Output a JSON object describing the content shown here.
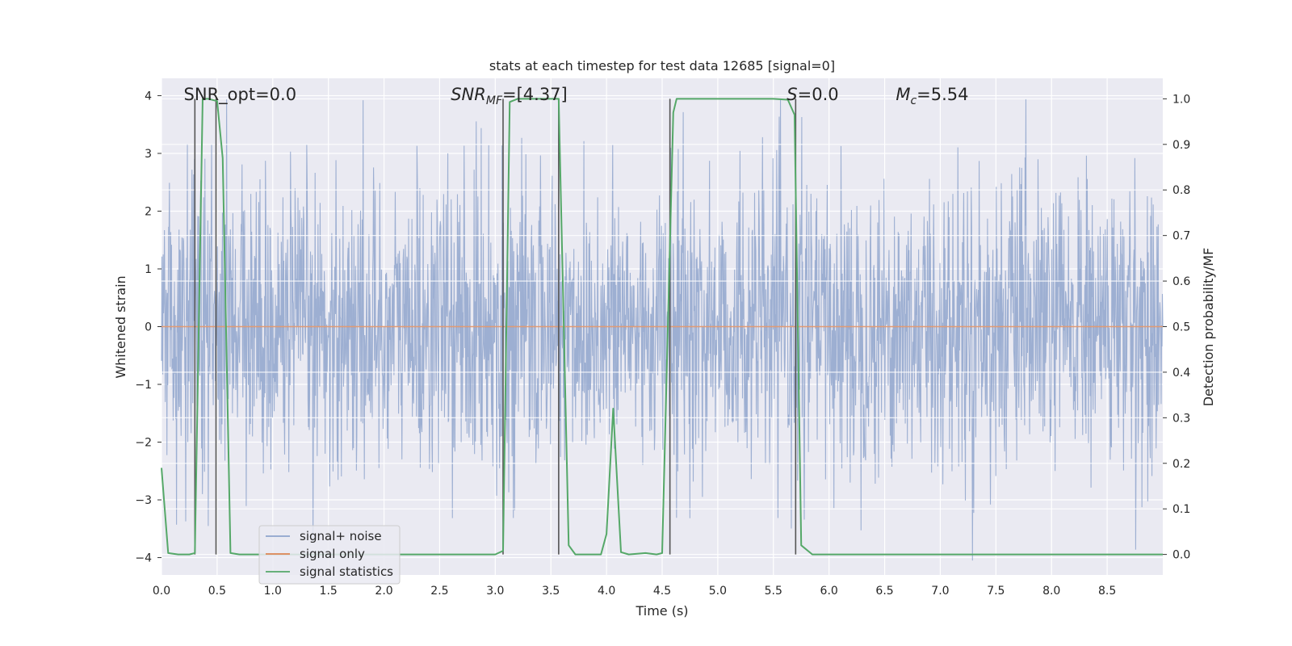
{
  "chart_data": {
    "type": "line",
    "title": "stats at each timestep for test data 12685 [signal=0]",
    "xlabel": "Time (s)",
    "ylabel": "Whitened strain",
    "y2label": "Detection probability/MF",
    "xlim": [
      0,
      9
    ],
    "ylim": [
      -4.3,
      4.3
    ],
    "y2lim": [
      -0.045,
      1.045
    ],
    "x_ticks": [
      0.0,
      0.5,
      1.0,
      1.5,
      2.0,
      2.5,
      3.0,
      3.5,
      4.0,
      4.5,
      5.0,
      5.5,
      6.0,
      6.5,
      7.0,
      7.5,
      8.0,
      8.5
    ],
    "x_tick_labels": [
      "0.0",
      "0.5",
      "1.0",
      "1.5",
      "2.0",
      "2.5",
      "3.0",
      "3.5",
      "4.0",
      "4.5",
      "5.0",
      "5.5",
      "6.0",
      "6.5",
      "7.0",
      "7.5",
      "8.0",
      "8.5"
    ],
    "y_ticks": [
      4,
      3,
      2,
      1,
      0,
      -1,
      -2,
      -3,
      -4
    ],
    "y_tick_labels": [
      "4",
      "3",
      "2",
      "1",
      "0",
      "−1",
      "−2",
      "−3",
      "−4"
    ],
    "y2_ticks": [
      1.0,
      0.9,
      0.8,
      0.7,
      0.6,
      0.5,
      0.4,
      0.3,
      0.2,
      0.1,
      0.0
    ],
    "y2_tick_labels": [
      "1.0",
      "0.9",
      "0.8",
      "0.7",
      "0.6",
      "0.5",
      "0.4",
      "0.3",
      "0.2",
      "0.1",
      "0.0"
    ],
    "grid": true,
    "legend_position": "lower-left",
    "legend": [
      {
        "label": "signal+ noise",
        "color": "#8fa4cc"
      },
      {
        "label": "signal only",
        "color": "#dd8452"
      },
      {
        "label": "signal statistics",
        "color": "#55a868"
      }
    ],
    "annotations": [
      {
        "text": "SNR_opt=0.0",
        "x": 0.2,
        "style": "plain"
      },
      {
        "main": "SNR",
        "sub": "MF",
        "rest": "=[4.37]",
        "x": 2.6,
        "style": "italic-sub"
      },
      {
        "main": "S",
        "sub": "",
        "rest": "=0.0",
        "x": 5.62,
        "style": "italic-sub"
      },
      {
        "main": "M",
        "sub": "c",
        "rest": "=5.54",
        "x": 6.6,
        "style": "italic-sub"
      }
    ],
    "vertical_markers": [
      0.3,
      0.49,
      3.07,
      3.57,
      4.57,
      5.7
    ],
    "noise_series": {
      "name": "signal+ noise",
      "duration": 9.0,
      "envelope_upper": [
        2.0,
        3.9
      ],
      "envelope_lower": [
        -1.5,
        -4.0
      ]
    },
    "signal_series": {
      "name": "signal only",
      "value": 0.0
    },
    "stats_series": {
      "name": "signal statistics",
      "points": [
        [
          0.0,
          0.19
        ],
        [
          0.06,
          0.003
        ],
        [
          0.15,
          0.0
        ],
        [
          0.25,
          0.0
        ],
        [
          0.3,
          0.003
        ],
        [
          0.37,
          1.0
        ],
        [
          0.42,
          1.0
        ],
        [
          0.5,
          0.995
        ],
        [
          0.55,
          0.87
        ],
        [
          0.62,
          0.003
        ],
        [
          0.7,
          0.0
        ],
        [
          1.0,
          0.0
        ],
        [
          2.0,
          0.0
        ],
        [
          3.0,
          0.0
        ],
        [
          3.07,
          0.008
        ],
        [
          3.13,
          0.993
        ],
        [
          3.2,
          1.0
        ],
        [
          3.57,
          1.0
        ],
        [
          3.66,
          0.02
        ],
        [
          3.72,
          0.0
        ],
        [
          3.95,
          0.0
        ],
        [
          4.0,
          0.045
        ],
        [
          4.06,
          0.32
        ],
        [
          4.13,
          0.005
        ],
        [
          4.2,
          0.0
        ],
        [
          4.35,
          0.003
        ],
        [
          4.45,
          0.0
        ],
        [
          4.5,
          0.003
        ],
        [
          4.6,
          0.97
        ],
        [
          4.63,
          1.0
        ],
        [
          5.5,
          1.0
        ],
        [
          5.63,
          0.998
        ],
        [
          5.69,
          0.965
        ],
        [
          5.75,
          0.02
        ],
        [
          5.85,
          0.0
        ],
        [
          7.0,
          0.0
        ],
        [
          8.0,
          0.0
        ],
        [
          9.0,
          0.0
        ]
      ]
    }
  }
}
